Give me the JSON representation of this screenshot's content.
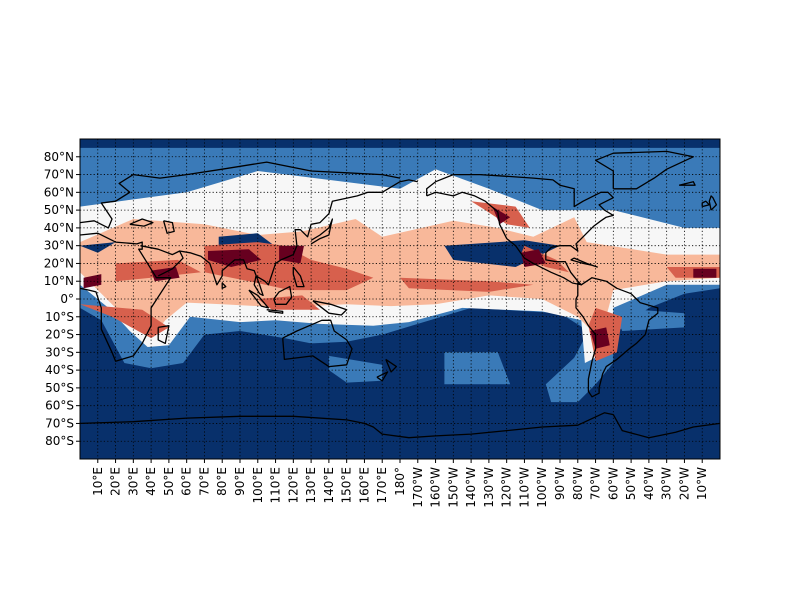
{
  "map": {
    "projection": "plate-carree",
    "central_longitude": 180,
    "lon_range_deg": [
      0,
      360
    ],
    "lat_range_deg": [
      -90,
      90
    ],
    "gridlines": "dotted",
    "lat_labels": [
      "80°N",
      "70°N",
      "60°N",
      "50°N",
      "40°N",
      "30°N",
      "20°N",
      "10°N",
      "0°",
      "10°S",
      "20°S",
      "30°S",
      "40°S",
      "50°S",
      "60°S",
      "70°S",
      "80°S"
    ],
    "lon_labels": [
      "10°E",
      "20°E",
      "30°E",
      "40°E",
      "50°E",
      "60°E",
      "70°E",
      "80°E",
      "90°E",
      "100°E",
      "110°E",
      "120°E",
      "130°E",
      "140°E",
      "150°E",
      "160°E",
      "170°E",
      "180°",
      "170°W",
      "160°W",
      "150°W",
      "140°W",
      "130°W",
      "120°W",
      "110°W",
      "100°W",
      "90°W",
      "80°W",
      "70°W",
      "60°W",
      "50°W",
      "40°W",
      "30°W",
      "20°W",
      "10°W"
    ],
    "colormap": [
      "#08306b",
      "#3a7ab8",
      "#a6cde2",
      "#f7f7f7",
      "#f8b89a",
      "#d7604d",
      "#67001f"
    ],
    "background_color": "#08306b",
    "coastline_color": "#000000"
  }
}
